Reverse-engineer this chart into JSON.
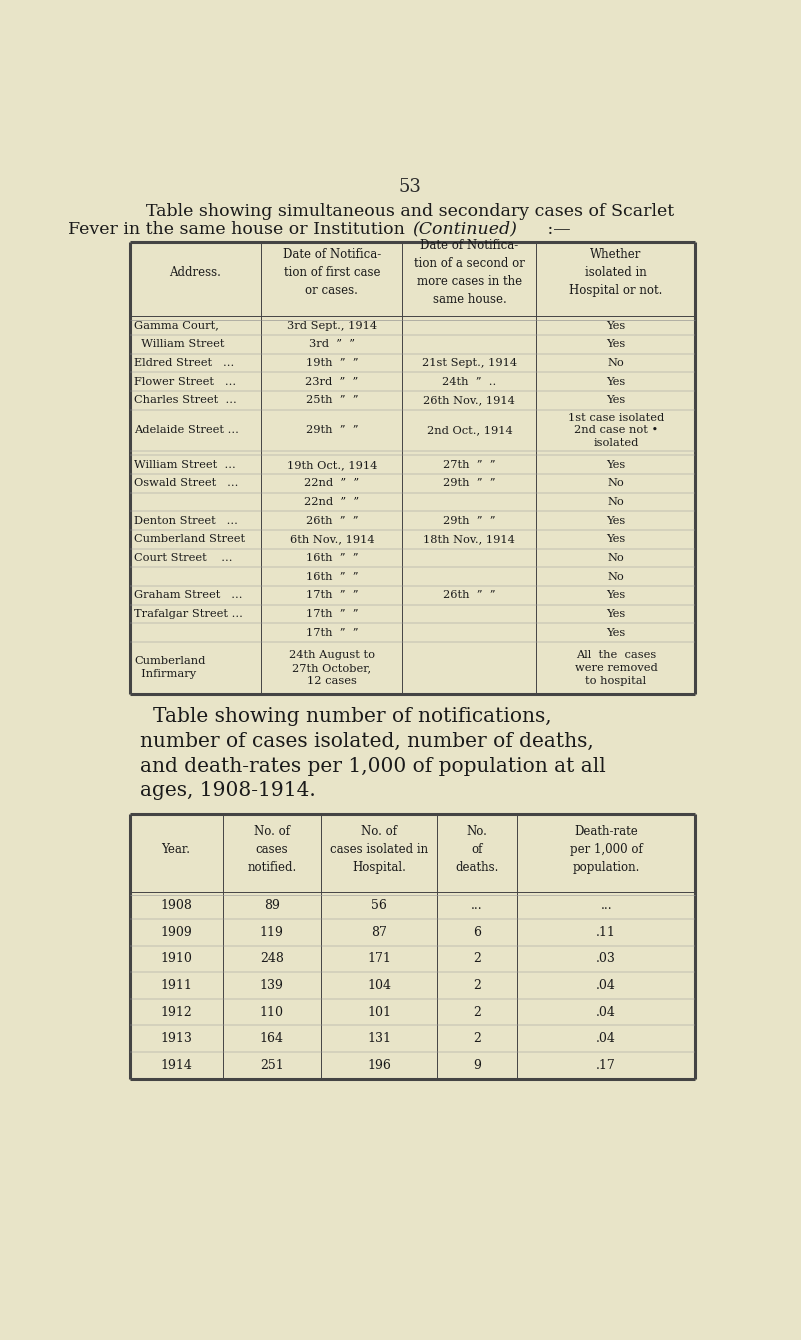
{
  "bg_color": "#e8e4c8",
  "page_number": "53",
  "title1": "Table showing simultaneous and secondary cases of Scarlet",
  "title2": "Fever in the same house or Institution (Continued) :—",
  "table1_headers": [
    "Address.",
    "Date of Notifica-\ntion of first case\nor cases.",
    "Date of Notifica-\ntion of a second or\nmore cases in the\nsame house.",
    "Whether\nisolated in\nHospital or not."
  ],
  "table1_rows": [
    [
      "Gamma Court,",
      "3rd Sept., 1914",
      "",
      "Yes"
    ],
    [
      "  William Street",
      "3rd  ”  ”",
      "",
      "Yes"
    ],
    [
      "Eldred Street   ...",
      "19th  ”  ”",
      "21st Sept., 1914",
      "No"
    ],
    [
      "Flower Street   ...",
      "23rd  ”  ”",
      "24th  ”  ..",
      "Yes"
    ],
    [
      "Charles Street  ...",
      "25th  ”  ”",
      "26th Nov., 1914",
      "Yes"
    ],
    [
      "Adelaide Street ...",
      "29th  ”  ”",
      "2nd Oct., 1914",
      "1st case isolated\n2nd case not •\nisolated"
    ],
    [
      "",
      "",
      "",
      ""
    ],
    [
      "William Street  ...",
      "19th Oct., 1914",
      "27th  ”  ”",
      "Yes"
    ],
    [
      "Oswald Street   ...",
      "22nd  ”  ”",
      "29th  ”  ”",
      "No"
    ],
    [
      "",
      "22nd  ”  ”",
      "",
      "No"
    ],
    [
      "Denton Street   ...",
      "26th  ”  ”",
      "29th  ”  ”",
      "Yes"
    ],
    [
      "Cumberland Street",
      "6th Nov., 1914",
      "18th Nov., 1914",
      "Yes"
    ],
    [
      "Court Street    ...",
      "16th  ”  ”",
      "",
      "No"
    ],
    [
      "",
      "16th  ”  ”",
      "",
      "No"
    ],
    [
      "Graham Street   ...",
      "17th  ”  ”",
      "26th  ”  ”",
      "Yes"
    ],
    [
      "Trafalgar Street ...",
      "17th  ”  ”",
      "",
      "Yes"
    ],
    [
      "",
      "17th  ”  ”",
      "",
      "Yes"
    ],
    [
      "Cumberland\n  Infirmary",
      "24th August to\n27th October,\n12 cases",
      "",
      "All  the  cases\nwere removed\nto hospital"
    ]
  ],
  "title3_line1": "Table showing number of notifications,",
  "title3_line2": "number of cases isolated, number of deaths,",
  "title3_line3": "and death-rates per 1,000 of population at all",
  "title3_line4": "ages, 1908-1914.",
  "table2_headers": [
    "Year.",
    "No. of\ncases\nnotified.",
    "No. of\ncases isolated in\nHospital.",
    "No.\nof\ndeaths.",
    "Death-rate\nper 1,000 of\npopulation."
  ],
  "table2_rows": [
    [
      "1908",
      "89",
      "56",
      "...",
      "..."
    ],
    [
      "1909",
      "119",
      "87",
      "6",
      ".11"
    ],
    [
      "1910",
      "248",
      "171",
      "2",
      ".03"
    ],
    [
      "1911",
      "139",
      "104",
      "2",
      ".04"
    ],
    [
      "1912",
      "110",
      "101",
      "2",
      ".04"
    ],
    [
      "1913",
      "164",
      "131",
      "2",
      ".04"
    ],
    [
      "1914",
      "251",
      "196",
      "9",
      ".17"
    ]
  ]
}
